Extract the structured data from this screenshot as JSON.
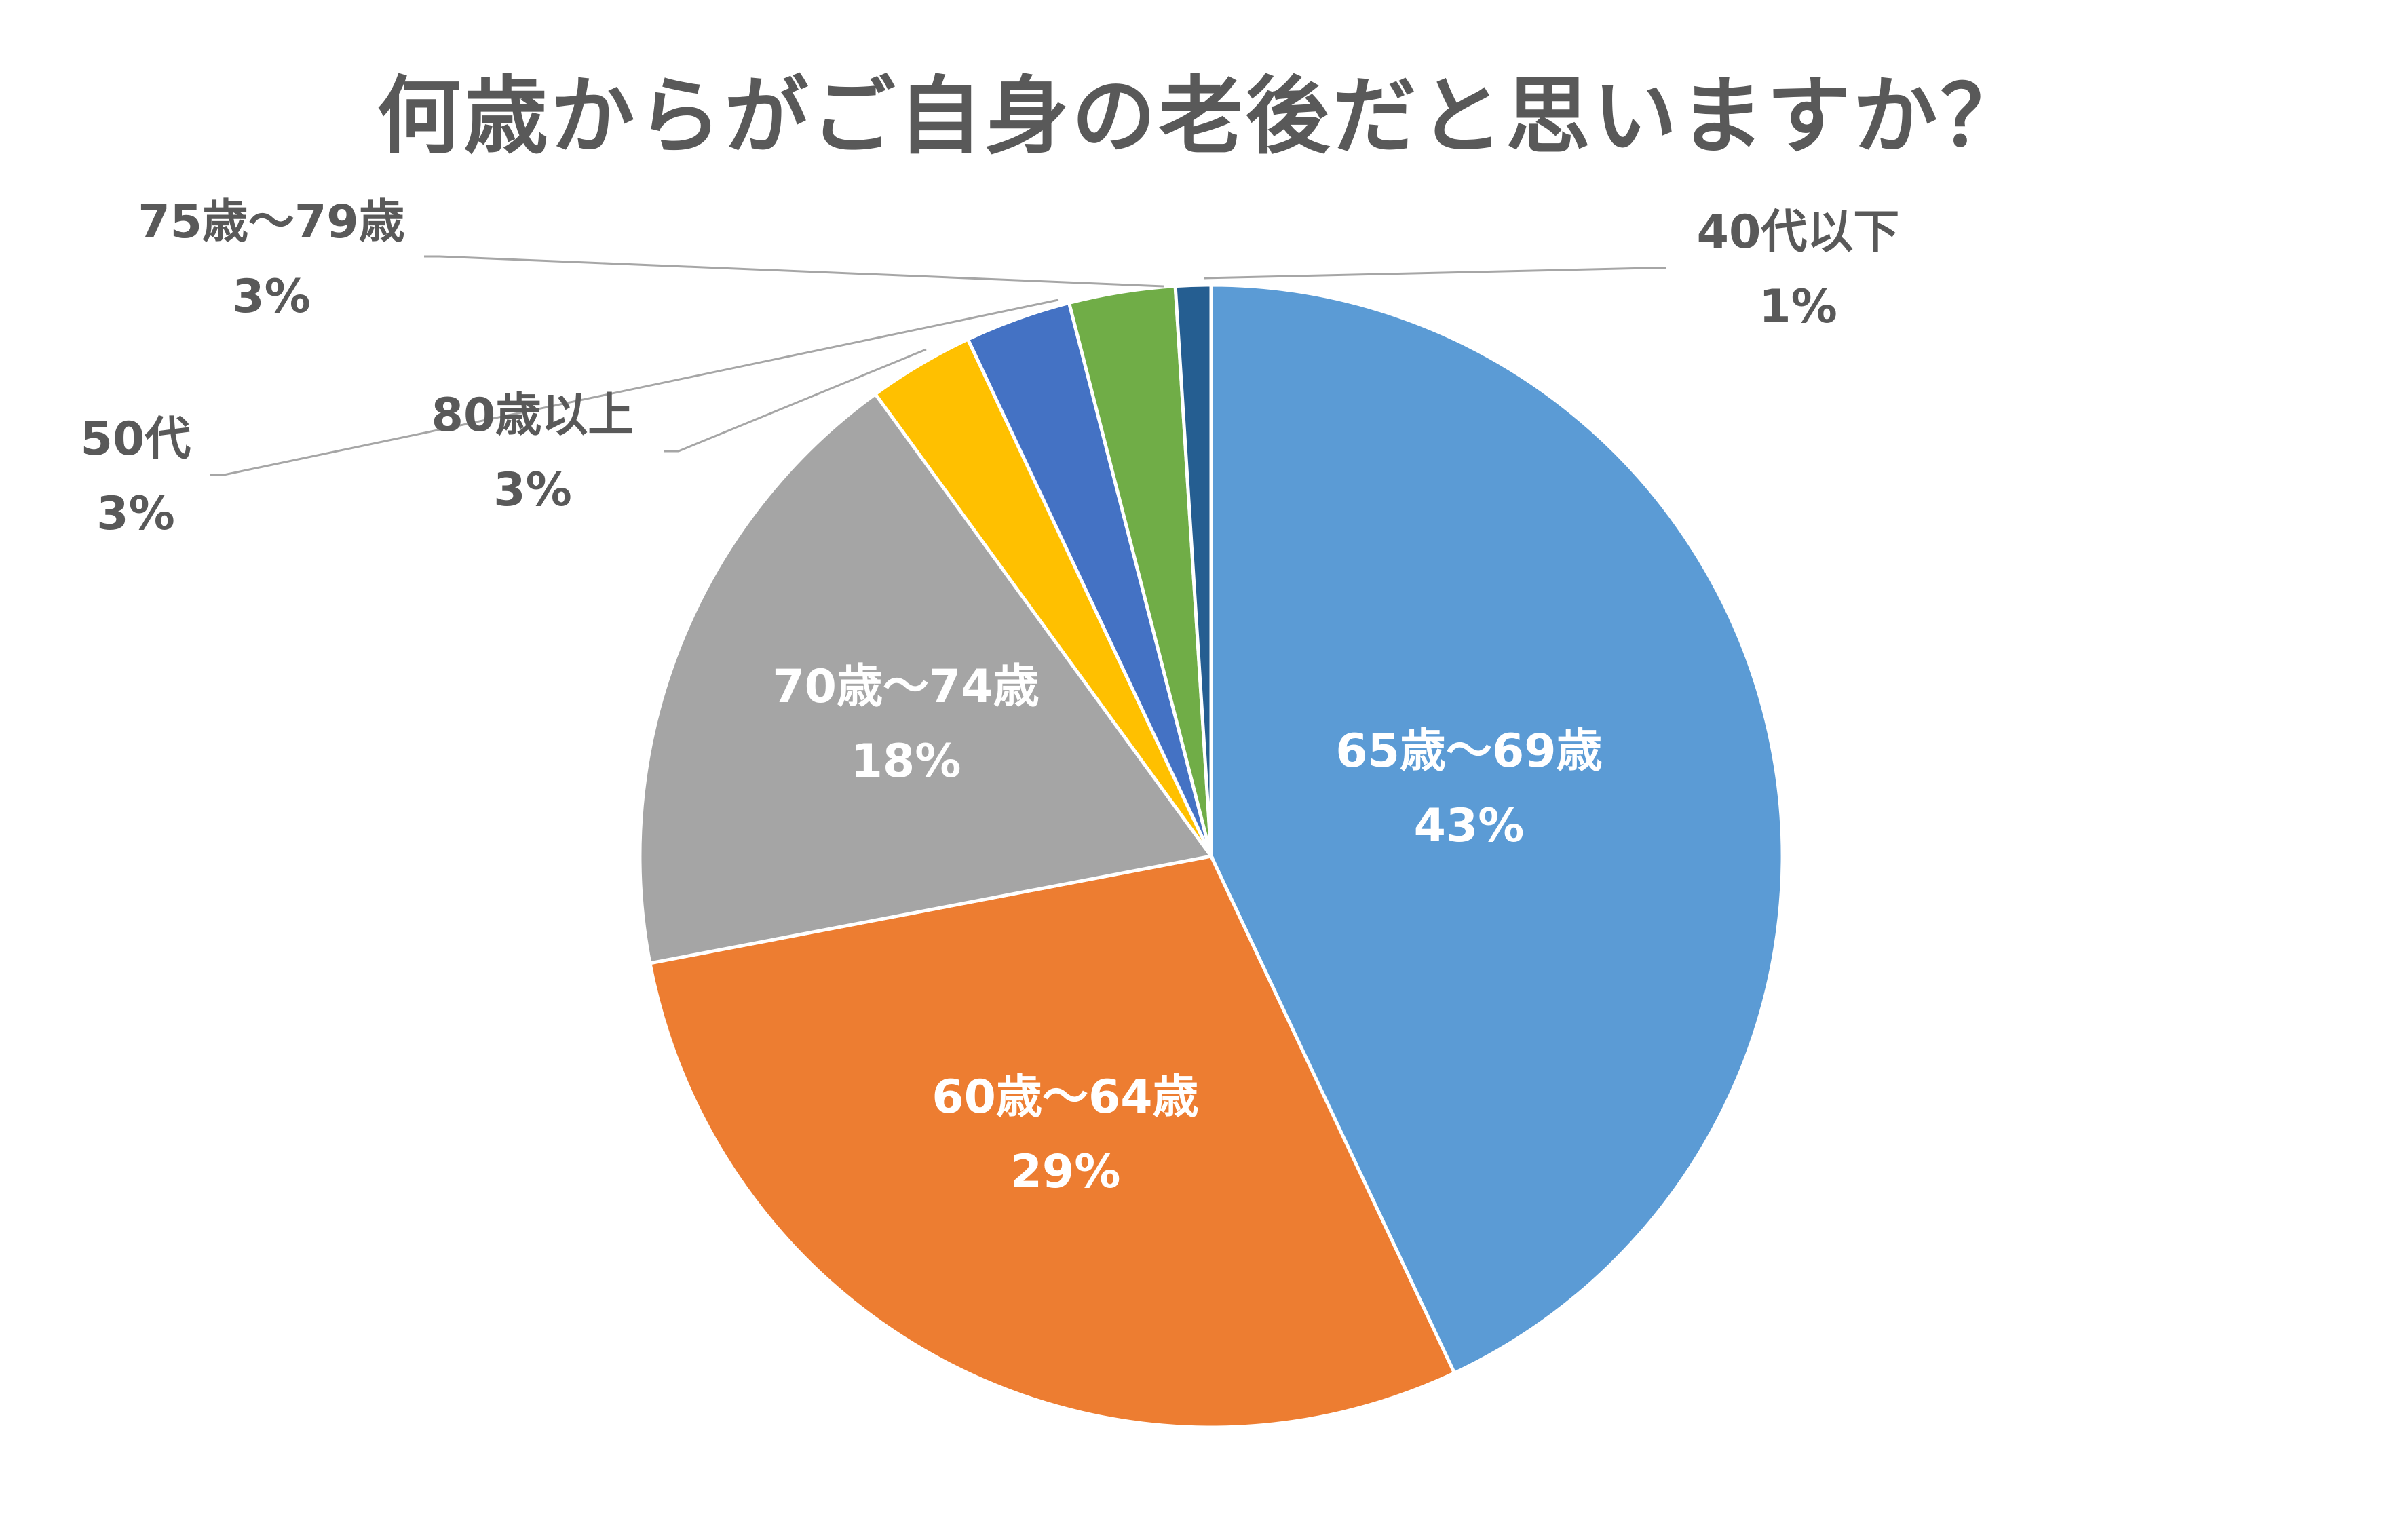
{
  "chart_data": {
    "type": "pie",
    "title": "何歳からがご自身の老後だと思いますか？",
    "start_angle_deg": 0,
    "direction": "clockwise",
    "slices": [
      {
        "label": "65歳～69歳",
        "value": 43,
        "pct_label": "43%",
        "color": "#5B9BD5",
        "label_inside": true,
        "label_color": "#FFFFFF"
      },
      {
        "label": "60歳～64歳",
        "value": 29,
        "pct_label": "29%",
        "color": "#ED7D31",
        "label_inside": true,
        "label_color": "#FFFFFF"
      },
      {
        "label": "70歳～74歳",
        "value": 18,
        "pct_label": "18%",
        "color": "#A5A5A5",
        "label_inside": true,
        "label_color": "#FFFFFF"
      },
      {
        "label": "80歳以上",
        "value": 3,
        "pct_label": "3%",
        "color": "#FFC000",
        "label_inside": false,
        "label_color": "#595959"
      },
      {
        "label": "50代",
        "value": 3,
        "pct_label": "3%",
        "color": "#4472C4",
        "label_inside": false,
        "label_color": "#595959"
      },
      {
        "label": "75歳～79歳",
        "value": 3,
        "pct_label": "3%",
        "color": "#70AD47",
        "label_inside": false,
        "label_color": "#595959"
      },
      {
        "label": "40代以下",
        "value": 1,
        "pct_label": "1%",
        "color": "#255E91",
        "label_inside": false,
        "label_color": "#595959"
      }
    ]
  }
}
